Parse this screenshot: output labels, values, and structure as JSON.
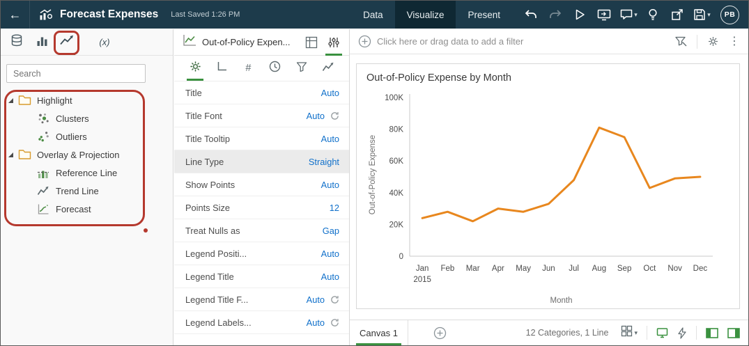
{
  "glyphs": {
    "back": "←",
    "caret_down": "▾",
    "kebab": "⋮",
    "hash": "#"
  },
  "topbar": {
    "title": "Forecast Expenses",
    "last_saved": "Last Saved 1:26 PM",
    "tabs": [
      {
        "label": "Data",
        "active": false
      },
      {
        "label": "Visualize",
        "active": true
      },
      {
        "label": "Present",
        "active": false
      }
    ],
    "avatar": "PB"
  },
  "left_panel": {
    "search_placeholder": "Search",
    "calc_tab_label": "(x)",
    "tree": [
      {
        "label": "Highlight",
        "icon": "folder-icon",
        "expanded": true,
        "children": [
          {
            "label": "Clusters",
            "icon": "clusters-icon"
          },
          {
            "label": "Outliers",
            "icon": "outliers-icon"
          }
        ]
      },
      {
        "label": "Overlay & Projection",
        "icon": "folder-icon",
        "expanded": true,
        "children": [
          {
            "label": "Reference Line",
            "icon": "reference-line-icon"
          },
          {
            "label": "Trend Line",
            "icon": "trend-line-icon"
          },
          {
            "label": "Forecast",
            "icon": "forecast-icon"
          }
        ]
      }
    ]
  },
  "properties_panel": {
    "viz_title": "Out-of-Policy Expen...",
    "rows": [
      {
        "label": "Title",
        "value": "Auto"
      },
      {
        "label": "Title Font",
        "value": "Auto",
        "refresh": true
      },
      {
        "label": "Title Tooltip",
        "value": "Auto"
      },
      {
        "label": "Line Type",
        "value": "Straight",
        "selected": true
      },
      {
        "label": "Show Points",
        "value": "Auto"
      },
      {
        "label": "Points Size",
        "value": "12"
      },
      {
        "label": "Treat Nulls as",
        "value": "Gap"
      },
      {
        "label": "Legend Positi...",
        "value": "Auto"
      },
      {
        "label": "Legend Title",
        "value": "Auto"
      },
      {
        "label": "Legend Title F...",
        "value": "Auto",
        "refresh": true
      },
      {
        "label": "Legend Labels...",
        "value": "Auto",
        "refresh": true
      }
    ]
  },
  "filter_bar": {
    "prompt": "Click here or drag data to add a filter"
  },
  "chart_data": {
    "type": "line",
    "title": "Out-of-Policy Expense by Month",
    "xlabel": "Month",
    "ylabel": "Out-of-Policy Expense",
    "categories": [
      "Jan",
      "Feb",
      "Mar",
      "Apr",
      "May",
      "Jun",
      "Jul",
      "Aug",
      "Sep",
      "Oct",
      "Nov",
      "Dec"
    ],
    "x_sub_label": "2015",
    "values": [
      24000,
      28000,
      22000,
      30000,
      28000,
      33000,
      48000,
      81000,
      75000,
      43000,
      49000,
      50000
    ],
    "ylim": [
      0,
      100000
    ],
    "yticks": [
      0,
      20000,
      40000,
      60000,
      80000,
      100000
    ],
    "ytick_labels": [
      "0",
      "20K",
      "40K",
      "60K",
      "80K",
      "100K"
    ],
    "line_color": "#e8871e",
    "grid": false,
    "legend": "none"
  },
  "bottom_bar": {
    "canvas_tab": "Canvas 1",
    "status": "12 Categories, 1 Line"
  },
  "colors": {
    "topbar_bg": "#1d3b4b",
    "accent_green": "#3a913f",
    "value_blue": "#1070ca",
    "annotation_red": "#b5392e",
    "chart_line": "#e8871e"
  }
}
